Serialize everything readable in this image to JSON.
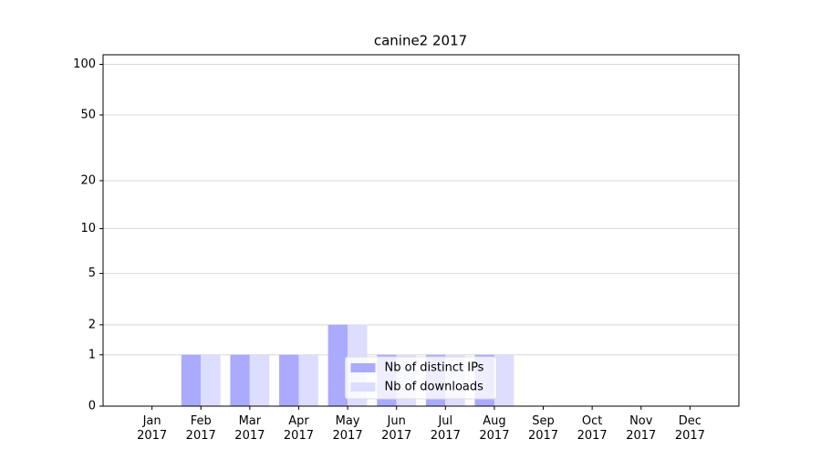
{
  "chart_data": {
    "type": "bar",
    "title": "canine2 2017",
    "categories": [
      "Jan 2017",
      "Feb 2017",
      "Mar 2017",
      "Apr 2017",
      "May 2017",
      "Jun 2017",
      "Jul 2017",
      "Aug 2017",
      "Sep 2017",
      "Oct 2017",
      "Nov 2017",
      "Dec 2017"
    ],
    "series": [
      {
        "name": "Nb of distinct IPs",
        "color": "#aaaaff",
        "values": [
          0,
          1,
          1,
          1,
          2,
          1,
          1,
          1,
          0,
          0,
          0,
          0
        ]
      },
      {
        "name": "Nb of downloads",
        "color": "#ddddff",
        "values": [
          0,
          1,
          1,
          1,
          2,
          1,
          1,
          1,
          0,
          0,
          0,
          0
        ]
      }
    ],
    "y_scale": "log1p",
    "ylim": [
      0,
      114
    ],
    "yticks": [
      0,
      1,
      2,
      5,
      10,
      20,
      50,
      100
    ],
    "grid": true,
    "legend": "lower center"
  }
}
